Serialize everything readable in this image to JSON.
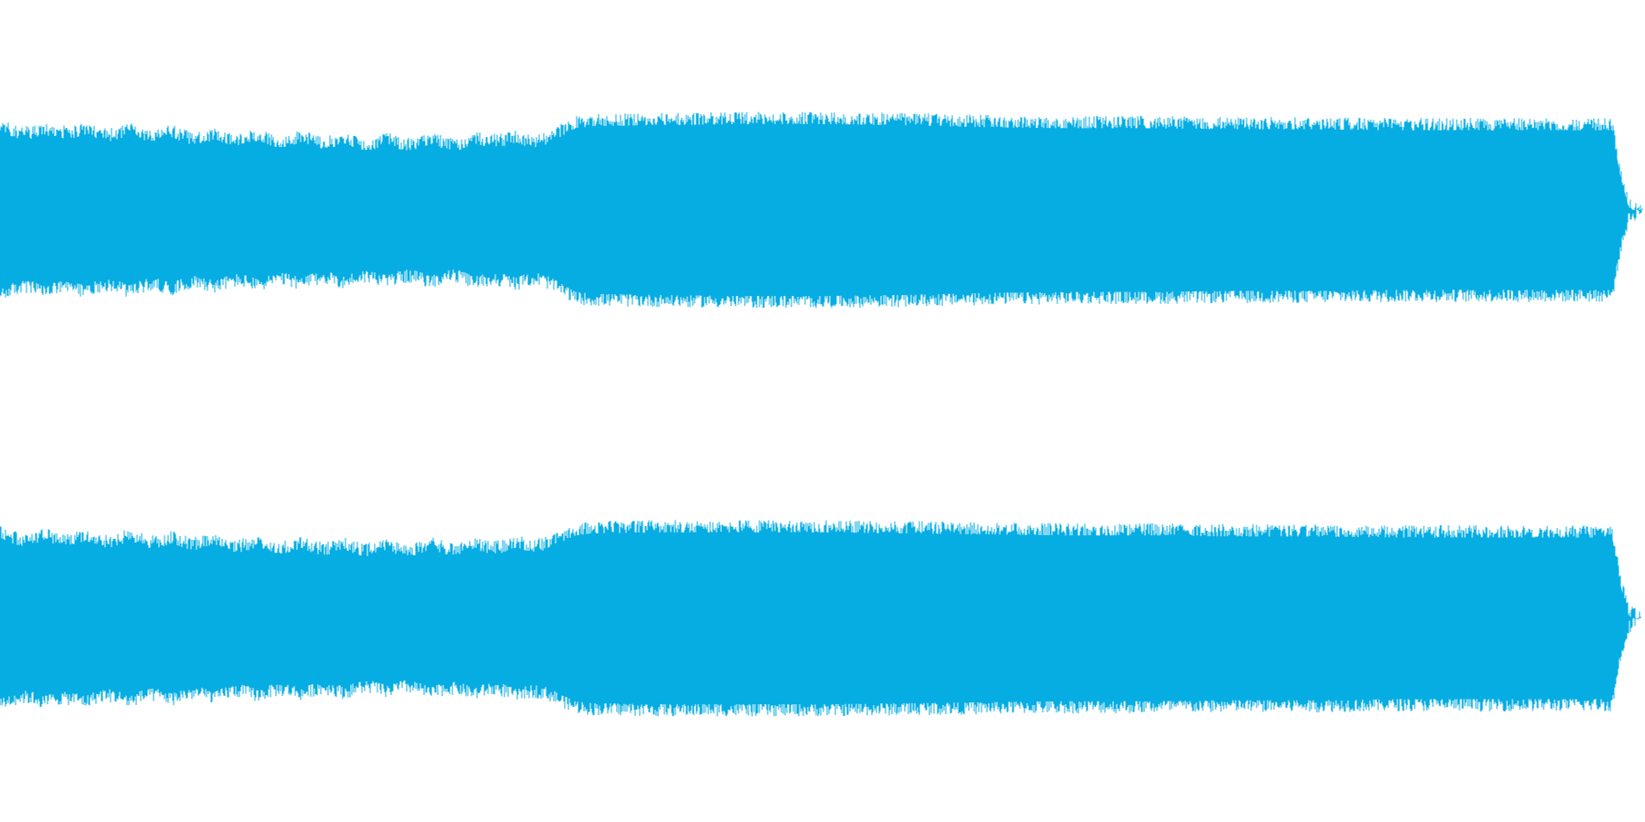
{
  "chart_data": {
    "type": "area",
    "subtype": "stereo-waveform",
    "color": "#06ADE3",
    "background": "#FFFFFF",
    "grid": false,
    "legend": "none",
    "ylim": [
      -1,
      1
    ],
    "channels": [
      {
        "name": "",
        "envelope": [
          [
            0.0,
            0.9
          ],
          [
            0.02,
            0.86
          ],
          [
            0.04,
            0.88
          ],
          [
            0.06,
            0.85
          ],
          [
            0.08,
            0.86
          ],
          [
            0.1,
            0.84
          ],
          [
            0.12,
            0.82
          ],
          [
            0.14,
            0.81
          ],
          [
            0.16,
            0.8
          ],
          [
            0.18,
            0.79
          ],
          [
            0.2,
            0.78
          ],
          [
            0.22,
            0.77
          ],
          [
            0.24,
            0.76
          ],
          [
            0.26,
            0.77
          ],
          [
            0.28,
            0.76
          ],
          [
            0.3,
            0.8
          ],
          [
            0.32,
            0.78
          ],
          [
            0.34,
            0.83
          ],
          [
            0.35,
            0.92
          ],
          [
            0.36,
            0.94
          ],
          [
            0.4,
            0.95
          ],
          [
            0.45,
            0.96
          ],
          [
            0.5,
            0.96
          ],
          [
            0.55,
            0.95
          ],
          [
            0.6,
            0.93
          ],
          [
            0.65,
            0.92
          ],
          [
            0.7,
            0.92
          ],
          [
            0.75,
            0.91
          ],
          [
            0.8,
            0.91
          ],
          [
            0.85,
            0.9
          ],
          [
            0.9,
            0.9
          ],
          [
            0.95,
            0.9
          ],
          [
            0.98,
            0.9
          ],
          [
            0.985,
            0.45
          ],
          [
            0.99,
            0.15
          ],
          [
            1.0,
            0.03
          ]
        ]
      },
      {
        "name": "",
        "envelope": [
          [
            0.0,
            0.91
          ],
          [
            0.02,
            0.88
          ],
          [
            0.04,
            0.9
          ],
          [
            0.06,
            0.87
          ],
          [
            0.08,
            0.88
          ],
          [
            0.1,
            0.86
          ],
          [
            0.12,
            0.85
          ],
          [
            0.14,
            0.83
          ],
          [
            0.16,
            0.82
          ],
          [
            0.18,
            0.81
          ],
          [
            0.2,
            0.8
          ],
          [
            0.22,
            0.79
          ],
          [
            0.24,
            0.78
          ],
          [
            0.26,
            0.8
          ],
          [
            0.28,
            0.8
          ],
          [
            0.3,
            0.81
          ],
          [
            0.32,
            0.82
          ],
          [
            0.34,
            0.86
          ],
          [
            0.35,
            0.93
          ],
          [
            0.36,
            0.95
          ],
          [
            0.4,
            0.96
          ],
          [
            0.45,
            0.96
          ],
          [
            0.5,
            0.96
          ],
          [
            0.55,
            0.95
          ],
          [
            0.6,
            0.94
          ],
          [
            0.65,
            0.93
          ],
          [
            0.7,
            0.93
          ],
          [
            0.75,
            0.92
          ],
          [
            0.8,
            0.92
          ],
          [
            0.85,
            0.91
          ],
          [
            0.9,
            0.91
          ],
          [
            0.95,
            0.91
          ],
          [
            0.98,
            0.91
          ],
          [
            0.985,
            0.45
          ],
          [
            0.99,
            0.15
          ],
          [
            1.0,
            0.03
          ]
        ]
      }
    ]
  }
}
